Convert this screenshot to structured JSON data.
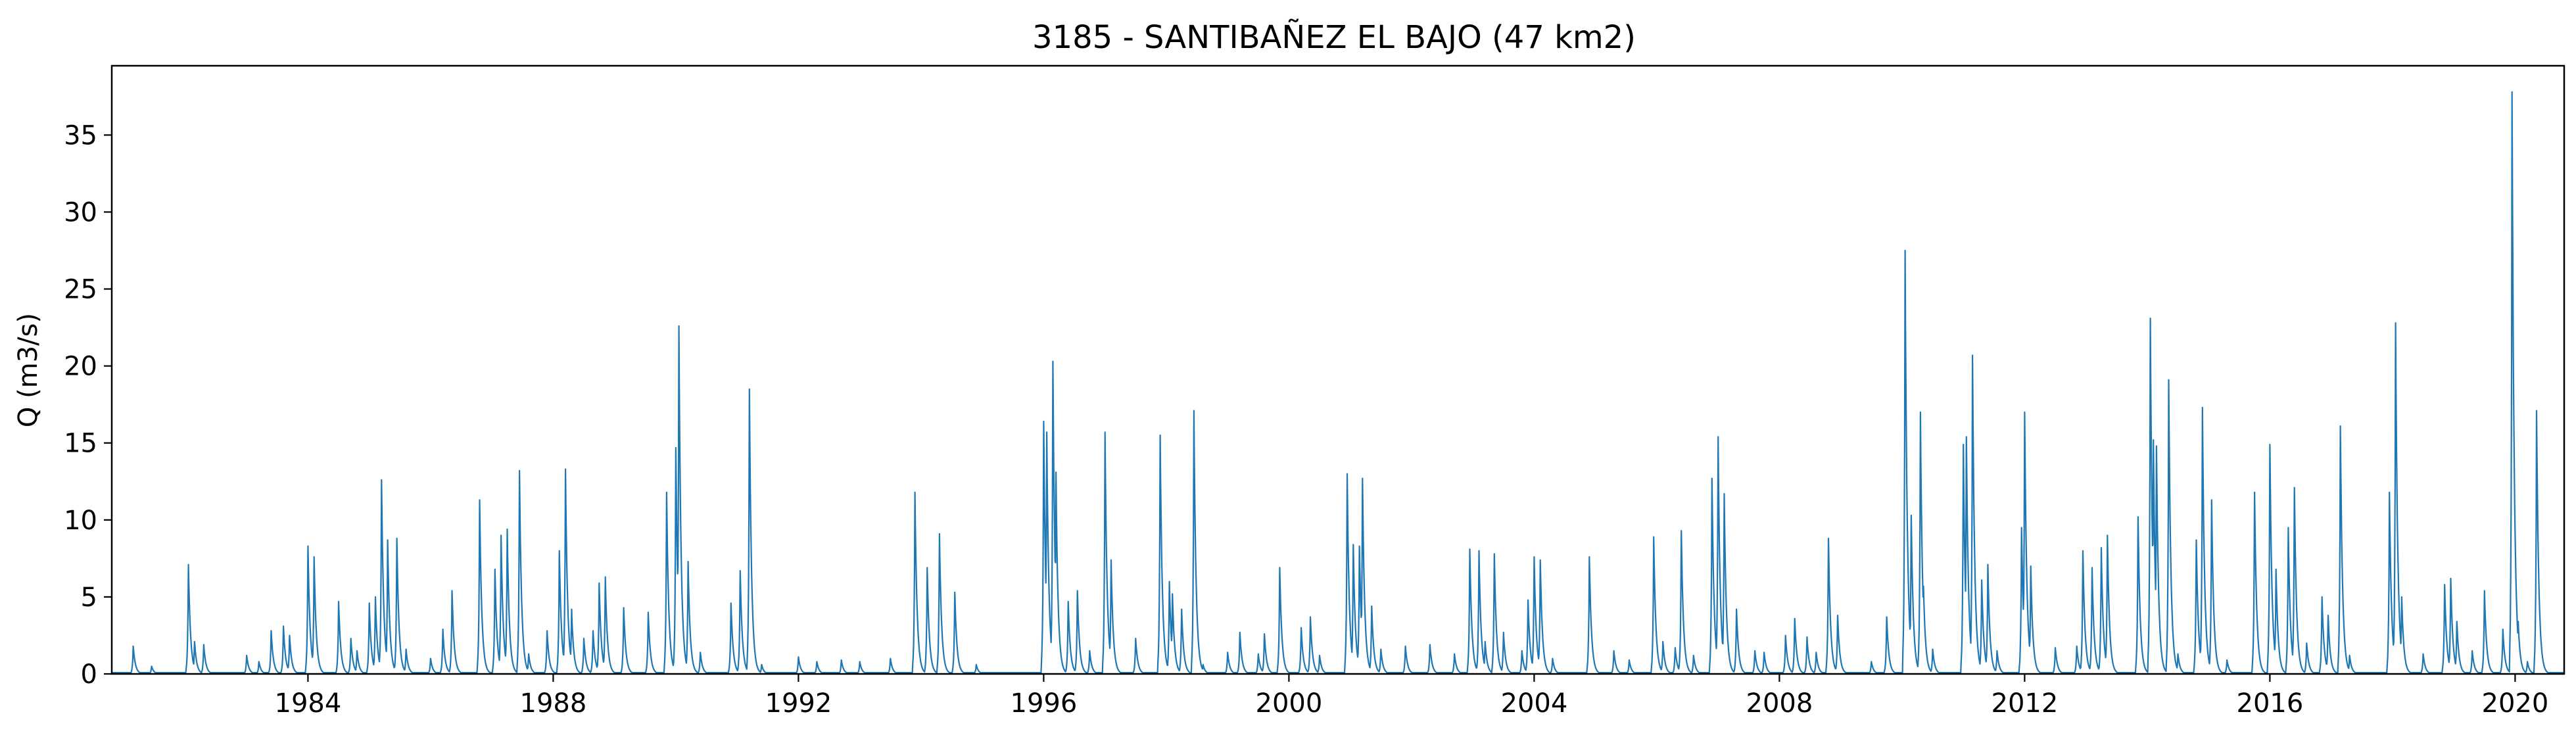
{
  "chart_data": {
    "type": "line",
    "title": "3185 - SANTIBAÑEZ EL BAJO (47 km2)",
    "xlabel": "",
    "ylabel": "Q (m3/s)",
    "xlim": [
      1980.8,
      2020.8
    ],
    "ylim": [
      0,
      39.5
    ],
    "x_ticks": [
      1984,
      1988,
      1992,
      1996,
      2000,
      2004,
      2008,
      2012,
      2016,
      2020
    ],
    "y_ticks": [
      0,
      5,
      10,
      15,
      20,
      25,
      30,
      35
    ],
    "grid": false,
    "legend": "none",
    "line_color": "#1f77b4",
    "baseline": 0.08,
    "series": [
      {
        "events": [
          [
            1981.15,
            1.8
          ],
          [
            1981.45,
            0.5
          ],
          [
            1982.05,
            7.1
          ],
          [
            1982.15,
            2.1
          ],
          [
            1982.3,
            1.9
          ],
          [
            1983.0,
            1.2
          ],
          [
            1983.2,
            0.8
          ],
          [
            1983.4,
            2.8
          ],
          [
            1983.6,
            3.1
          ],
          [
            1983.7,
            2.5
          ],
          [
            1984.0,
            8.3
          ],
          [
            1984.1,
            7.6
          ],
          [
            1984.5,
            4.7
          ],
          [
            1984.7,
            2.3
          ],
          [
            1984.8,
            1.5
          ],
          [
            1985.0,
            4.6
          ],
          [
            1985.1,
            5.0
          ],
          [
            1985.2,
            12.6
          ],
          [
            1985.3,
            8.7
          ],
          [
            1985.45,
            8.8
          ],
          [
            1985.6,
            1.6
          ],
          [
            1986.0,
            1.0
          ],
          [
            1986.2,
            2.9
          ],
          [
            1986.35,
            5.4
          ],
          [
            1986.8,
            11.3
          ],
          [
            1987.05,
            6.8
          ],
          [
            1987.15,
            9.0
          ],
          [
            1987.25,
            9.4
          ],
          [
            1987.45,
            13.2
          ],
          [
            1987.6,
            1.3
          ],
          [
            1987.9,
            2.8
          ],
          [
            1988.1,
            8.0
          ],
          [
            1988.2,
            13.3
          ],
          [
            1988.3,
            4.2
          ],
          [
            1988.5,
            2.3
          ],
          [
            1988.65,
            2.8
          ],
          [
            1988.75,
            5.9
          ],
          [
            1988.85,
            6.3
          ],
          [
            1989.15,
            4.3
          ],
          [
            1989.55,
            4.0
          ],
          [
            1989.85,
            11.8
          ],
          [
            1990.0,
            14.7
          ],
          [
            1990.05,
            22.6
          ],
          [
            1990.2,
            7.3
          ],
          [
            1990.4,
            1.4
          ],
          [
            1990.9,
            4.6
          ],
          [
            1991.05,
            6.7
          ],
          [
            1991.2,
            18.5
          ],
          [
            1991.4,
            0.6
          ],
          [
            1992.0,
            1.1
          ],
          [
            1992.3,
            0.8
          ],
          [
            1992.7,
            0.9
          ],
          [
            1993.0,
            0.8
          ],
          [
            1993.5,
            1.0
          ],
          [
            1993.9,
            11.8
          ],
          [
            1994.1,
            6.9
          ],
          [
            1994.3,
            9.1
          ],
          [
            1994.55,
            5.3
          ],
          [
            1994.9,
            0.6
          ],
          [
            1996.0,
            16.4
          ],
          [
            1996.05,
            15.7
          ],
          [
            1996.15,
            20.3
          ],
          [
            1996.2,
            13.1
          ],
          [
            1996.4,
            4.7
          ],
          [
            1996.55,
            5.4
          ],
          [
            1996.75,
            1.5
          ],
          [
            1997.0,
            15.7
          ],
          [
            1997.1,
            7.4
          ],
          [
            1997.5,
            2.3
          ],
          [
            1997.9,
            15.5
          ],
          [
            1998.05,
            6.0
          ],
          [
            1998.1,
            5.2
          ],
          [
            1998.25,
            4.2
          ],
          [
            1998.45,
            17.1
          ],
          [
            1998.6,
            0.6
          ],
          [
            1999.0,
            1.4
          ],
          [
            1999.2,
            2.7
          ],
          [
            1999.5,
            1.3
          ],
          [
            1999.6,
            2.6
          ],
          [
            1999.85,
            6.9
          ],
          [
            2000.2,
            3.0
          ],
          [
            2000.35,
            3.7
          ],
          [
            2000.5,
            1.2
          ],
          [
            2000.95,
            13.0
          ],
          [
            2001.05,
            8.4
          ],
          [
            2001.15,
            8.3
          ],
          [
            2001.2,
            12.7
          ],
          [
            2001.35,
            4.4
          ],
          [
            2001.5,
            1.6
          ],
          [
            2001.9,
            1.8
          ],
          [
            2002.3,
            1.9
          ],
          [
            2002.7,
            1.3
          ],
          [
            2002.95,
            8.1
          ],
          [
            2003.1,
            8.0
          ],
          [
            2003.2,
            2.1
          ],
          [
            2003.35,
            7.8
          ],
          [
            2003.5,
            2.7
          ],
          [
            2003.8,
            1.5
          ],
          [
            2003.9,
            4.8
          ],
          [
            2004.0,
            7.6
          ],
          [
            2004.1,
            7.4
          ],
          [
            2004.3,
            1.0
          ],
          [
            2004.9,
            7.6
          ],
          [
            2005.3,
            1.5
          ],
          [
            2005.55,
            0.9
          ],
          [
            2005.95,
            8.9
          ],
          [
            2006.1,
            2.1
          ],
          [
            2006.3,
            1.7
          ],
          [
            2006.4,
            9.3
          ],
          [
            2006.6,
            1.2
          ],
          [
            2006.9,
            12.7
          ],
          [
            2007.0,
            15.4
          ],
          [
            2007.1,
            11.7
          ],
          [
            2007.3,
            4.2
          ],
          [
            2007.6,
            1.5
          ],
          [
            2007.75,
            1.4
          ],
          [
            2008.1,
            2.5
          ],
          [
            2008.25,
            3.6
          ],
          [
            2008.45,
            2.4
          ],
          [
            2008.6,
            1.4
          ],
          [
            2008.8,
            8.8
          ],
          [
            2008.95,
            3.8
          ],
          [
            2009.5,
            0.8
          ],
          [
            2009.75,
            3.7
          ],
          [
            2010.05,
            27.5
          ],
          [
            2010.15,
            10.3
          ],
          [
            2010.3,
            17.0
          ],
          [
            2010.35,
            5.7
          ],
          [
            2010.5,
            1.6
          ],
          [
            2011.0,
            14.9
          ],
          [
            2011.05,
            15.4
          ],
          [
            2011.15,
            20.7
          ],
          [
            2011.3,
            6.1
          ],
          [
            2011.4,
            7.1
          ],
          [
            2011.55,
            1.5
          ],
          [
            2011.95,
            9.5
          ],
          [
            2012.0,
            17.0
          ],
          [
            2012.1,
            7.0
          ],
          [
            2012.5,
            1.7
          ],
          [
            2012.85,
            1.8
          ],
          [
            2012.95,
            8.0
          ],
          [
            2013.1,
            6.9
          ],
          [
            2013.25,
            8.2
          ],
          [
            2013.35,
            9.0
          ],
          [
            2013.85,
            10.2
          ],
          [
            2014.05,
            23.1
          ],
          [
            2014.1,
            15.2
          ],
          [
            2014.15,
            14.8
          ],
          [
            2014.35,
            19.1
          ],
          [
            2014.5,
            1.3
          ],
          [
            2014.8,
            8.7
          ],
          [
            2014.9,
            17.3
          ],
          [
            2015.05,
            11.3
          ],
          [
            2015.3,
            0.9
          ],
          [
            2015.75,
            11.8
          ],
          [
            2016.0,
            14.9
          ],
          [
            2016.1,
            6.8
          ],
          [
            2016.3,
            9.5
          ],
          [
            2016.4,
            12.1
          ],
          [
            2016.6,
            2.0
          ],
          [
            2016.85,
            5.0
          ],
          [
            2016.95,
            3.8
          ],
          [
            2017.15,
            16.1
          ],
          [
            2017.3,
            1.2
          ],
          [
            2017.95,
            11.8
          ],
          [
            2018.05,
            22.8
          ],
          [
            2018.15,
            5.0
          ],
          [
            2018.5,
            1.3
          ],
          [
            2018.85,
            5.8
          ],
          [
            2018.95,
            6.2
          ],
          [
            2019.05,
            3.4
          ],
          [
            2019.3,
            1.5
          ],
          [
            2019.5,
            5.4
          ],
          [
            2019.8,
            2.9
          ],
          [
            2019.95,
            37.8
          ],
          [
            2020.05,
            3.4
          ],
          [
            2020.2,
            0.8
          ],
          [
            2020.35,
            17.1
          ],
          [
            2020.45,
            1.0
          ]
        ]
      }
    ]
  }
}
